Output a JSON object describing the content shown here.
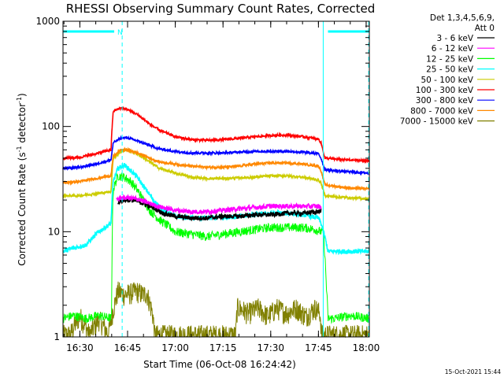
{
  "chart_data": {
    "type": "line",
    "title": "RHESSI Observing Summary Count Rates, Corrected",
    "xlabel": "Start Time (06-Oct-08 16:24:42)",
    "ylabel_main": "Corrected Count Rate (s",
    "ylabel_sup1": "-1",
    "ylabel_mid": " detector",
    "ylabel_sup2": "-1",
    "ylabel_end": ")",
    "yscale": "log",
    "ylim": [
      1,
      1000
    ],
    "xlim": [
      "16:24:42",
      "18:01:00"
    ],
    "x_ticks": [
      "16:30",
      "16:45",
      "17:00",
      "17:15",
      "17:30",
      "17:45",
      "18:00"
    ],
    "x_tick_minutes": [
      990,
      1005,
      1020,
      1035,
      1050,
      1065,
      1080
    ],
    "x_min_minutes": 984.7,
    "x_max_minutes": 1081,
    "y_ticks": [
      "1",
      "10",
      "100",
      "1000"
    ],
    "y_tick_values": [
      1,
      10,
      100,
      1000
    ],
    "legend_header": [
      "Det 1,3,4,5,6,9,",
      "Att 0"
    ],
    "legend_position": "right",
    "flag_label": "N",
    "flag_color": "#00ffff",
    "flag_level": 800,
    "flag_segments": [
      [
        984.7,
        1000.8
      ],
      [
        1068,
        1081
      ]
    ],
    "night_boundaries": [
      1003.3,
      1066.5,
      1080.8
    ],
    "night_boundary_color": "#00ffff",
    "series": [
      {
        "name": "3 - 6 keV",
        "color": "#000000",
        "x": [
          1002,
          1003,
          1004,
          1006,
          1008,
          1010,
          1013,
          1016,
          1020,
          1025,
          1030,
          1035,
          1040,
          1045,
          1050,
          1055,
          1060,
          1065,
          1065.8
        ],
        "y": [
          19,
          20,
          20,
          20,
          19.5,
          18.5,
          17,
          15,
          14,
          13.5,
          13.5,
          14,
          14,
          14.5,
          14.5,
          15,
          15,
          15.5,
          16
        ]
      },
      {
        "name": "6 - 12 keV",
        "color": "#ff00ff",
        "x": [
          1001.5,
          1003,
          1005,
          1008,
          1010,
          1013,
          1016,
          1020,
          1025,
          1030,
          1035,
          1040,
          1045,
          1050,
          1055,
          1060,
          1065,
          1065.8
        ],
        "y": [
          20,
          21,
          21,
          20.5,
          19.5,
          18,
          17,
          16,
          15.5,
          15.5,
          16,
          16.5,
          17,
          17.5,
          17.5,
          17.5,
          17.5,
          17
        ]
      },
      {
        "name": "12 - 25 keV",
        "color": "#00ff00",
        "x": [
          984.7,
          988,
          992,
          996,
          999.8,
          1000,
          1000.5,
          1002,
          1004,
          1006,
          1008,
          1010,
          1012,
          1015,
          1020,
          1025,
          1030,
          1035,
          1040,
          1045,
          1050,
          1055,
          1060,
          1064,
          1065.8,
          1066.5,
          1067,
          1067.5,
          1068,
          1070,
          1075,
          1081
        ],
        "y": [
          1.5,
          1.6,
          1.5,
          1.6,
          1.5,
          1.6,
          25,
          34,
          33,
          30,
          25,
          20,
          16,
          13,
          10,
          9.5,
          9,
          9.5,
          10,
          10.5,
          11,
          11,
          11,
          10.5,
          10,
          10,
          6,
          3,
          1.5,
          1.5,
          1.6,
          1.5
        ]
      },
      {
        "name": "25 - 50 keV",
        "color": "#00ffff",
        "x": [
          984.7,
          988,
          992,
          996,
          999.8,
          1000.5,
          1002,
          1004,
          1006,
          1008,
          1010,
          1013,
          1016,
          1020,
          1025,
          1030,
          1035,
          1040,
          1045,
          1050,
          1055,
          1060,
          1065,
          1065.8,
          1068,
          1070,
          1075,
          1081
        ],
        "y": [
          6.5,
          7,
          7.5,
          10,
          12,
          30,
          40,
          43,
          38,
          33,
          27,
          20,
          16,
          14,
          13.5,
          13.5,
          13.5,
          14,
          14.5,
          15,
          15,
          14.5,
          13.5,
          12,
          6.5,
          6.5,
          6.5,
          6.5
        ]
      },
      {
        "name": "50 - 100 keV",
        "color": "#cccc00",
        "x": [
          984.7,
          990,
          995,
          999.8,
          1000.5,
          1003,
          1005,
          1008,
          1012,
          1015,
          1020,
          1025,
          1030,
          1035,
          1040,
          1045,
          1050,
          1055,
          1060,
          1065,
          1065.8,
          1067,
          1070,
          1075,
          1081
        ],
        "y": [
          22,
          22,
          23,
          24,
          50,
          58,
          60,
          55,
          46,
          40,
          36,
          33,
          32,
          32,
          32.5,
          33,
          34,
          34,
          33,
          31,
          29,
          22,
          21.5,
          21,
          20.5
        ]
      },
      {
        "name": "100 - 300 keV",
        "color": "#ff0000",
        "x": [
          984.7,
          990,
          995,
          999.8,
          1000.5,
          1003,
          1005,
          1008,
          1012,
          1015,
          1020,
          1025,
          1030,
          1035,
          1040,
          1045,
          1050,
          1055,
          1060,
          1065,
          1065.8,
          1067,
          1070,
          1075,
          1081
        ],
        "y": [
          50,
          51,
          55,
          60,
          140,
          150,
          145,
          130,
          105,
          92,
          80,
          75,
          74,
          75,
          77,
          80,
          82,
          83,
          80,
          76,
          70,
          50,
          49,
          48,
          47
        ]
      },
      {
        "name": "300 - 800 keV",
        "color": "#0000ff",
        "x": [
          984.7,
          990,
          995,
          999.8,
          1000.5,
          1003,
          1005,
          1008,
          1012,
          1015,
          1020,
          1025,
          1030,
          1035,
          1040,
          1045,
          1050,
          1055,
          1060,
          1065,
          1065.8,
          1067,
          1070,
          1075,
          1081
        ],
        "y": [
          40,
          41,
          44,
          48,
          70,
          78,
          78,
          73,
          66,
          61,
          58,
          56,
          56,
          56,
          57,
          58,
          58,
          58,
          57,
          55,
          50,
          39,
          38,
          37,
          36
        ]
      },
      {
        "name": "800 - 7000 keV",
        "color": "#ff8800",
        "x": [
          984.7,
          990,
          995,
          999.8,
          1000.5,
          1003,
          1005,
          1008,
          1012,
          1015,
          1020,
          1025,
          1030,
          1035,
          1040,
          1045,
          1050,
          1055,
          1060,
          1065,
          1065.8,
          1067,
          1070,
          1075,
          1081
        ],
        "y": [
          29,
          30,
          32,
          34,
          52,
          60,
          60,
          56,
          50,
          46,
          44,
          42,
          41,
          41,
          42,
          44,
          45,
          45,
          44,
          42,
          38,
          28,
          27,
          26,
          25.5
        ]
      },
      {
        "name": "7000 - 15000 keV",
        "color": "#808000",
        "x": [
          984.7,
          987,
          990,
          993,
          996,
          999,
          1000,
          1001,
          1002,
          1004,
          1006,
          1008,
          1010,
          1011,
          1012,
          1013,
          1013.5,
          1014,
          1016,
          1020,
          1025,
          1030,
          1035,
          1039,
          1039.5,
          1040,
          1043,
          1046,
          1049,
          1052,
          1055,
          1058,
          1061,
          1064,
          1065.5,
          1066,
          1070,
          1081
        ],
        "y": [
          1,
          1,
          1.5,
          1,
          1.4,
          1,
          1.5,
          2,
          2.6,
          2.4,
          2.5,
          2.6,
          2.4,
          2.5,
          2.0,
          1.5,
          1,
          1,
          1,
          1,
          1,
          1,
          1,
          1,
          1.8,
          1.8,
          1.6,
          1.8,
          1.5,
          1.8,
          1.6,
          1.8,
          1.5,
          1.8,
          1.6,
          1,
          1,
          1
        ]
      }
    ],
    "grid": false
  },
  "timestamp": "15-Oct-2021 15:44"
}
